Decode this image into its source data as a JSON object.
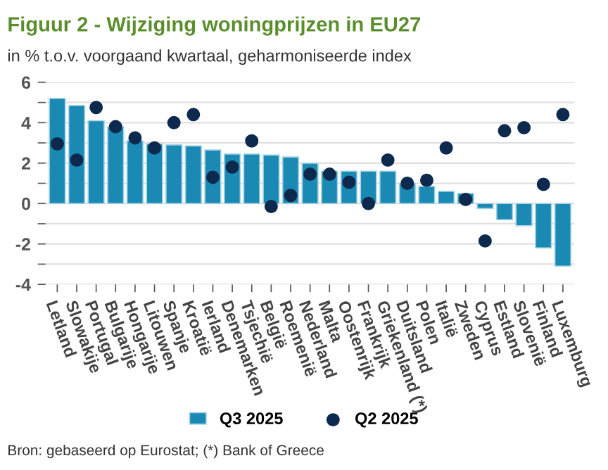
{
  "chart_data": {
    "type": "bar",
    "title": "Figuur 2 - Wijziging woningprijzen in EU27",
    "subtitle": "in % t.o.v. voorgaand kwartaal, geharmoniseerde index",
    "categories": [
      "Letland",
      "Slowakije",
      "Portugal",
      "Bulgarije",
      "Hongarije",
      "Litouwen",
      "Spanje",
      "Kroatië",
      "Ierland",
      "Denemarken",
      "Tsjechië",
      "België",
      "Roemenië",
      "Nederland",
      "Malta",
      "Oostenrijk",
      "Frankrijk",
      "Griekenland (*)",
      "Duitsland",
      "Polen",
      "Italië",
      "Zweden",
      "Cyprus",
      "Estland",
      "Slovenië",
      "Finland",
      "Luxemburg"
    ],
    "series": [
      {
        "name": "Q3 2025",
        "color": "#1a8ab4",
        "values": [
          5.2,
          4.85,
          4.1,
          3.8,
          3.1,
          2.95,
          2.9,
          2.85,
          2.65,
          2.45,
          2.45,
          2.4,
          2.3,
          2.0,
          1.6,
          1.6,
          1.6,
          1.6,
          1.0,
          0.85,
          0.6,
          0.5,
          -0.25,
          -0.8,
          -1.1,
          -2.2,
          -3.1
        ]
      },
      {
        "name": "Q2 2025",
        "type": "scatter",
        "color": "#0d2a4e",
        "marker": "circle",
        "values": [
          2.95,
          2.15,
          4.75,
          3.8,
          3.25,
          2.75,
          4.0,
          4.4,
          1.3,
          1.8,
          3.1,
          -0.15,
          0.4,
          1.45,
          1.45,
          1.05,
          0.0,
          2.15,
          1.0,
          1.15,
          2.75,
          0.2,
          -1.85,
          3.6,
          3.75,
          0.95,
          4.4
        ]
      }
    ],
    "ylim": [
      -4,
      6
    ],
    "yticks": [
      -4,
      {
        "value": -3,
        "label": null
      },
      -2,
      {
        "value": -1,
        "label": null
      },
      0,
      {
        "value": 1,
        "label": null
      },
      2,
      {
        "value": 3,
        "label": null
      },
      4,
      {
        "value": 5,
        "label": null
      },
      6
    ],
    "grid": "y",
    "legend": "bottom",
    "annotations": [
      "Bron: gebaseerd op Eurostat; (*) Bank of Greece"
    ]
  }
}
